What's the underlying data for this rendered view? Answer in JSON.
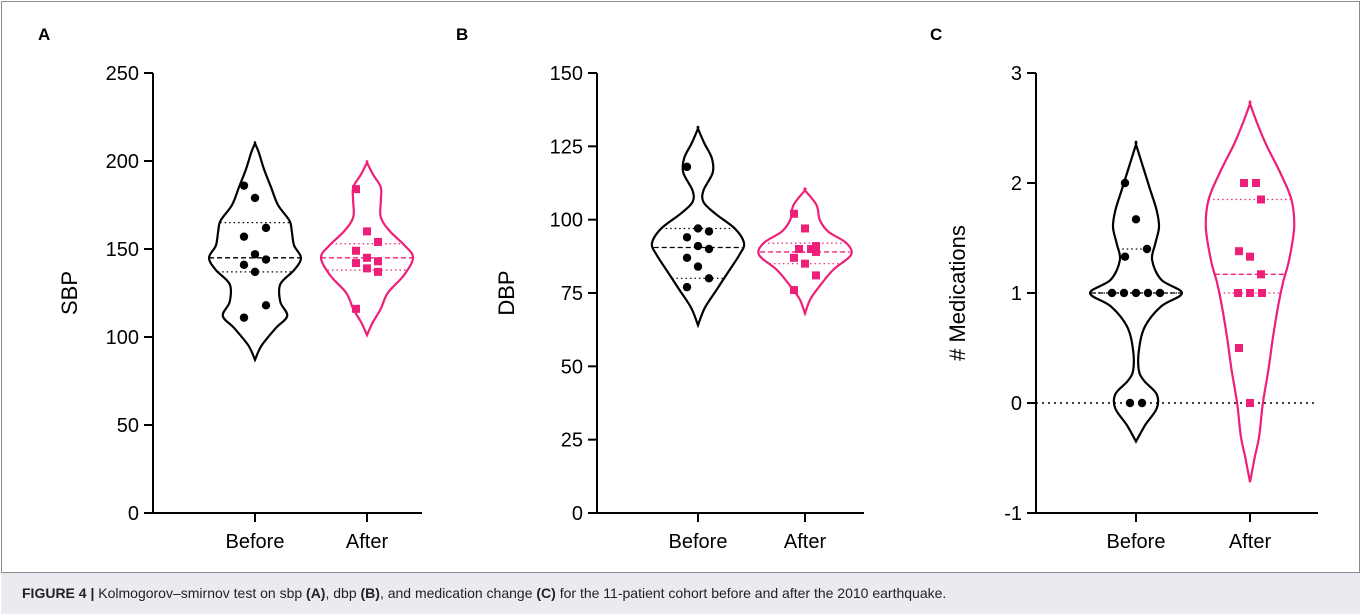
{
  "figure": {
    "caption_prefix": "FIGURE 4 |",
    "caption_parts": [
      {
        "text": " Kolmogorov–smirnov test on sbp ",
        "bold": false
      },
      {
        "text": "(A)",
        "bold": true
      },
      {
        "text": ", dbp ",
        "bold": false
      },
      {
        "text": "(B)",
        "bold": true
      },
      {
        "text": ", and medication change ",
        "bold": false
      },
      {
        "text": "(C)",
        "bold": true
      },
      {
        "text": " for the 11-patient cohort before and after the 2010 earthquake.",
        "bold": false
      }
    ]
  },
  "colors": {
    "before": "#000000",
    "after": "#ee1f78"
  },
  "chart_data": [
    {
      "panel": "A",
      "type": "violin",
      "ylabel": "SBP",
      "ylim": [
        0,
        250
      ],
      "yticks": [
        0,
        50,
        100,
        150,
        200,
        250
      ],
      "categories": [
        "Before",
        "After"
      ],
      "series": [
        {
          "name": "Before",
          "marker": "circle",
          "color": "#000000",
          "values": [
            186,
            179,
            162,
            157,
            147,
            144,
            141,
            137,
            118,
            111
          ],
          "median": 145,
          "quartiles": [
            137,
            165
          ],
          "violin_range": [
            87,
            210
          ],
          "density": [
            [
              87,
              0
            ],
            [
              95,
              0.14
            ],
            [
              105,
              0.45
            ],
            [
              112,
              0.7
            ],
            [
              120,
              0.55
            ],
            [
              130,
              0.55
            ],
            [
              138,
              0.85
            ],
            [
              145,
              1
            ],
            [
              152,
              0.85
            ],
            [
              160,
              0.8
            ],
            [
              166,
              0.75
            ],
            [
              175,
              0.5
            ],
            [
              185,
              0.35
            ],
            [
              195,
              0.2
            ],
            [
              205,
              0.08
            ],
            [
              210,
              0
            ]
          ]
        },
        {
          "name": "After",
          "marker": "square",
          "color": "#ee1f78",
          "values": [
            184,
            160,
            154,
            149,
            145,
            143,
            142,
            139,
            137,
            116
          ],
          "median": 145,
          "quartiles": [
            138,
            153
          ],
          "violin_range": [
            101,
            199
          ],
          "density": [
            [
              101,
              0
            ],
            [
              108,
              0.12
            ],
            [
              116,
              0.3
            ],
            [
              125,
              0.45
            ],
            [
              135,
              0.8
            ],
            [
              145,
              1
            ],
            [
              152,
              0.82
            ],
            [
              160,
              0.5
            ],
            [
              168,
              0.3
            ],
            [
              177,
              0.3
            ],
            [
              185,
              0.3
            ],
            [
              192,
              0.14
            ],
            [
              199,
              0
            ]
          ]
        }
      ]
    },
    {
      "panel": "B",
      "type": "violin",
      "ylabel": "DBP",
      "ylim": [
        0,
        150
      ],
      "yticks": [
        0,
        25,
        50,
        75,
        100,
        125,
        150
      ],
      "categories": [
        "Before",
        "After"
      ],
      "series": [
        {
          "name": "Before",
          "marker": "circle",
          "color": "#000000",
          "values": [
            118,
            97,
            96,
            94,
            91,
            90,
            87,
            84,
            80,
            77
          ],
          "median": 90.5,
          "quartiles": [
            80,
            97
          ],
          "violin_range": [
            64,
            131
          ],
          "density": [
            [
              64,
              0
            ],
            [
              70,
              0.15
            ],
            [
              76,
              0.4
            ],
            [
              82,
              0.65
            ],
            [
              88,
              0.9
            ],
            [
              92,
              1
            ],
            [
              97,
              0.8
            ],
            [
              102,
              0.38
            ],
            [
              106,
              0.12
            ],
            [
              110,
              0.12
            ],
            [
              116,
              0.32
            ],
            [
              121,
              0.3
            ],
            [
              126,
              0.14
            ],
            [
              131,
              0
            ]
          ]
        },
        {
          "name": "After",
          "marker": "square",
          "color": "#ee1f78",
          "values": [
            102,
            97,
            91,
            90,
            90,
            89,
            87,
            85,
            81,
            76
          ],
          "median": 89,
          "quartiles": [
            85,
            92
          ],
          "violin_range": [
            68,
            110
          ],
          "density": [
            [
              68,
              0
            ],
            [
              73,
              0.12
            ],
            [
              78,
              0.35
            ],
            [
              83,
              0.62
            ],
            [
              88,
              1
            ],
            [
              92,
              0.9
            ],
            [
              96,
              0.5
            ],
            [
              100,
              0.32
            ],
            [
              105,
              0.25
            ],
            [
              110,
              0
            ]
          ]
        }
      ]
    },
    {
      "panel": "C",
      "type": "violin",
      "ylabel": "# Medications",
      "ylim": [
        -1,
        3
      ],
      "yticks": [
        -1,
        0,
        1,
        2,
        3
      ],
      "reference_line": 0,
      "categories": [
        "Before",
        "After"
      ],
      "series": [
        {
          "name": "Before",
          "marker": "circle",
          "color": "#000000",
          "values": [
            2,
            1.67,
            1.4,
            1.33,
            1,
            1,
            1,
            1,
            1,
            0,
            0
          ],
          "median": 1,
          "quartiles": [
            1,
            1.4
          ],
          "violin_range": [
            -0.35,
            2.35
          ],
          "density": [
            [
              -0.35,
              0
            ],
            [
              -0.2,
              0.2
            ],
            [
              -0.05,
              0.45
            ],
            [
              0.08,
              0.45
            ],
            [
              0.2,
              0.18
            ],
            [
              0.3,
              0.06
            ],
            [
              0.5,
              0.07
            ],
            [
              0.7,
              0.2
            ],
            [
              0.88,
              0.55
            ],
            [
              1,
              1
            ],
            [
              1.12,
              0.55
            ],
            [
              1.3,
              0.35
            ],
            [
              1.45,
              0.42
            ],
            [
              1.6,
              0.5
            ],
            [
              1.75,
              0.45
            ],
            [
              1.95,
              0.3
            ],
            [
              2.15,
              0.15
            ],
            [
              2.35,
              0
            ]
          ]
        },
        {
          "name": "After",
          "marker": "square",
          "color": "#ee1f78",
          "values": [
            2,
            2,
            1.85,
            1.38,
            1.33,
            1.17,
            1,
            1,
            1,
            0.5,
            0
          ],
          "median": 1.17,
          "quartiles": [
            1,
            1.85
          ],
          "violin_range": [
            -0.72,
            2.72
          ],
          "density": [
            [
              -0.72,
              0
            ],
            [
              -0.5,
              0.1
            ],
            [
              -0.3,
              0.2
            ],
            [
              0,
              0.28
            ],
            [
              0.3,
              0.4
            ],
            [
              0.6,
              0.5
            ],
            [
              0.9,
              0.62
            ],
            [
              1.1,
              0.72
            ],
            [
              1.3,
              0.85
            ],
            [
              1.6,
              0.96
            ],
            [
              1.85,
              0.9
            ],
            [
              2.1,
              0.65
            ],
            [
              2.35,
              0.35
            ],
            [
              2.55,
              0.15
            ],
            [
              2.72,
              0
            ]
          ]
        }
      ]
    }
  ]
}
